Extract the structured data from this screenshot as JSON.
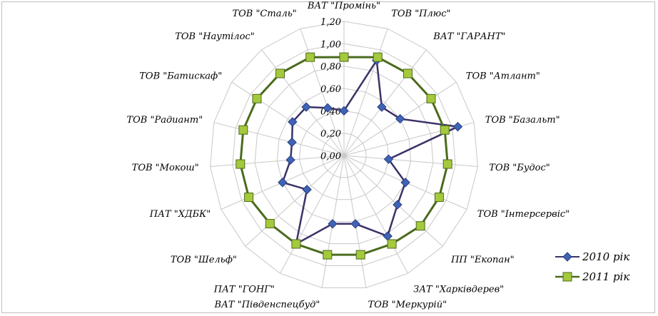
{
  "chart_data": {
    "type": "radar",
    "categories": [
      "ВАТ \"Промінь\"",
      "ТОВ \"Плюс\"",
      "ВАТ \"ГАРАНТ\"",
      "ТОВ \"Атлант\"",
      "ТОВ \"Базальт\"",
      "ТОВ \"Будос\"",
      "ТОВ \"Інтерсервіс\"",
      "ПП \"Екопан\"",
      "ЗАТ \"Харківдерев\"",
      "ТОВ \"Меркурій\"",
      "ВАТ \"Південспецбуд\"",
      "ПАТ \"ГОНГ\"",
      "ТОВ \"Шельф\"",
      "ПАТ \"ХДБК\"",
      "ТОВ \"Мокош\"",
      "ТОВ \"Радиант\"",
      "ТОВ \"Батискаф\"",
      "ТОВ \"Наутілос\"",
      "ТОВ \"Сталь\""
    ],
    "ticks": [
      "0,00",
      "0,20",
      "0,40",
      "0,60",
      "0,80",
      "1,00",
      "1,20"
    ],
    "rmax": 1.2,
    "series": [
      {
        "name": "2010 рік",
        "color": "#3b3268",
        "marker": "diamond",
        "values": [
          0.4,
          0.9,
          0.55,
          0.6,
          1.05,
          0.4,
          0.6,
          0.65,
          0.82,
          0.62,
          0.62,
          0.9,
          0.45,
          0.6,
          0.48,
          0.48,
          0.55,
          0.55,
          0.45
        ]
      },
      {
        "name": "2011 рік",
        "color": "#4a6b1d",
        "marker": "square",
        "values": [
          0.88,
          0.93,
          0.93,
          0.93,
          0.93,
          0.93,
          0.93,
          0.93,
          0.9,
          0.9,
          0.9,
          0.9,
          0.9,
          0.93,
          0.93,
          0.93,
          0.93,
          0.93,
          0.93
        ]
      }
    ],
    "legend_position": "bottom-right",
    "grid": true
  }
}
